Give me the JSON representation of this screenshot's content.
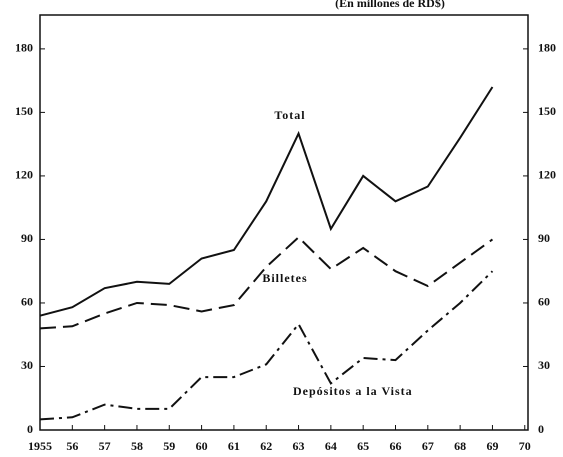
{
  "chart_data": {
    "type": "line",
    "title": "(En millones de RD$)",
    "x": [
      1955,
      1956,
      1957,
      1958,
      1959,
      1960,
      1961,
      1962,
      1963,
      1964,
      1965,
      1966,
      1967,
      1968,
      1969
    ],
    "series": [
      {
        "name": "Total",
        "color": "#111111",
        "dash": "solid",
        "values": [
          54,
          58,
          67,
          70,
          69,
          81,
          85,
          108,
          140,
          95,
          120,
          108,
          115,
          138,
          162
        ]
      },
      {
        "name": "Billetes",
        "color": "#111111",
        "dash": "dashed",
        "values": [
          48,
          49,
          55,
          60,
          59,
          56,
          59,
          77,
          91,
          76,
          86,
          75,
          68,
          79,
          90
        ]
      },
      {
        "name": "Depósitos a la Vista",
        "color": "#111111",
        "dash": "dashdot",
        "values": [
          5,
          6,
          12,
          10,
          10,
          25,
          25,
          31,
          50,
          22,
          34,
          33,
          47,
          60,
          75
        ]
      }
    ],
    "xlim": [
      1955,
      1970.1
    ],
    "xticks": [
      {
        "value": 1955,
        "label": "1955"
      },
      {
        "value": 1956,
        "label": "56"
      },
      {
        "value": 1957,
        "label": "57"
      },
      {
        "value": 1958,
        "label": "58"
      },
      {
        "value": 1959,
        "label": "59"
      },
      {
        "value": 1960,
        "label": "60"
      },
      {
        "value": 1961,
        "label": "61"
      },
      {
        "value": 1962,
        "label": "62"
      },
      {
        "value": 1963,
        "label": "63"
      },
      {
        "value": 1964,
        "label": "64"
      },
      {
        "value": 1965,
        "label": "65"
      },
      {
        "value": 1966,
        "label": "66"
      },
      {
        "value": 1967,
        "label": "67"
      },
      {
        "value": 1968,
        "label": "68"
      },
      {
        "value": 1969,
        "label": "69"
      },
      {
        "value": 1970,
        "label": "70"
      }
    ],
    "ylim": [
      0,
      196
    ],
    "yticks": [
      0,
      30,
      60,
      90,
      120,
      150,
      180
    ],
    "y2lim": [
      0,
      196
    ],
    "y2ticks": [
      0,
      30,
      60,
      90,
      120,
      150,
      180
    ]
  }
}
